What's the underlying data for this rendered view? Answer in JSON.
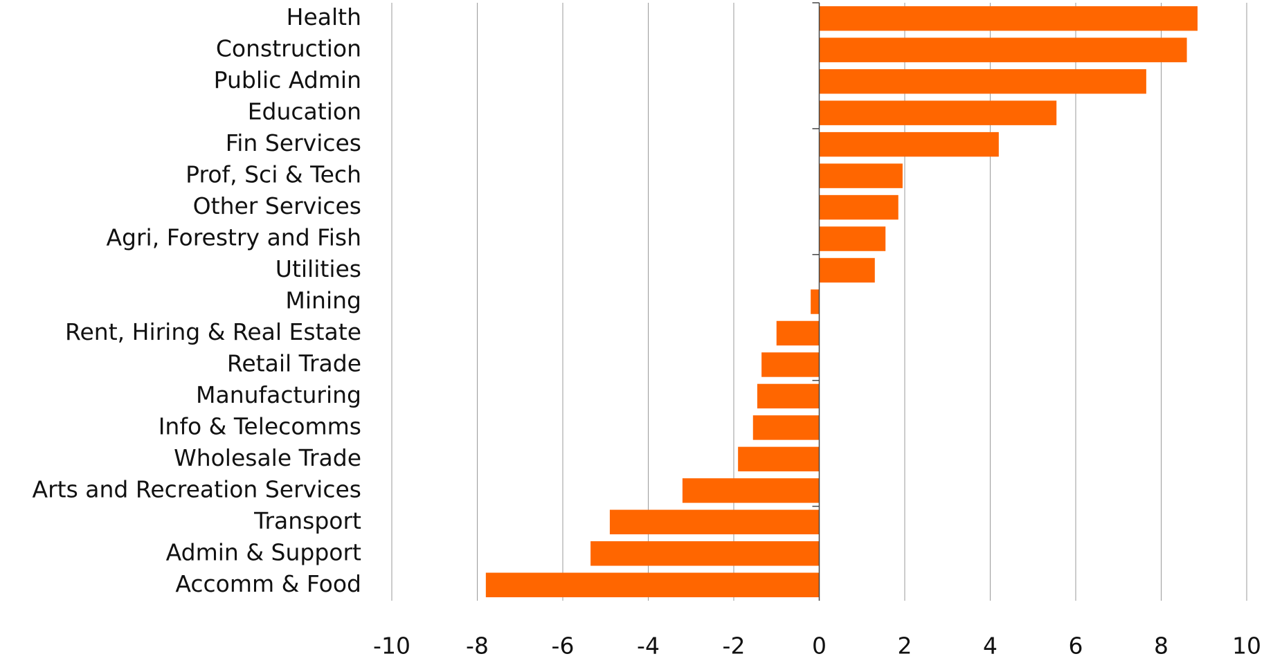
{
  "chart_data": {
    "type": "bar",
    "orientation": "horizontal",
    "categories": [
      "Health",
      "Construction",
      "Public Admin",
      "Education",
      "Fin Services",
      "Prof, Sci & Tech",
      "Other Services",
      "Agri, Forestry and Fish",
      "Utilities",
      "Mining",
      "Rent, Hiring & Real Estate",
      "Retail Trade",
      "Manufacturing",
      "Info & Telecomms",
      "Wholesale Trade",
      "Arts and Recreation Services",
      "Transport",
      "Admin & Support",
      "Accomm & Food"
    ],
    "values": [
      8.85,
      8.6,
      7.65,
      5.55,
      4.2,
      1.95,
      1.85,
      1.55,
      1.3,
      -0.2,
      -1.0,
      -1.35,
      -1.45,
      -1.55,
      -1.9,
      -3.2,
      -4.9,
      -5.35,
      -7.8
    ],
    "color": "#ff6600",
    "xlim": [
      -10,
      10
    ],
    "xticks": [
      -10,
      -8,
      -6,
      -4,
      -2,
      0,
      2,
      4,
      6,
      8,
      10
    ],
    "grid": true
  }
}
